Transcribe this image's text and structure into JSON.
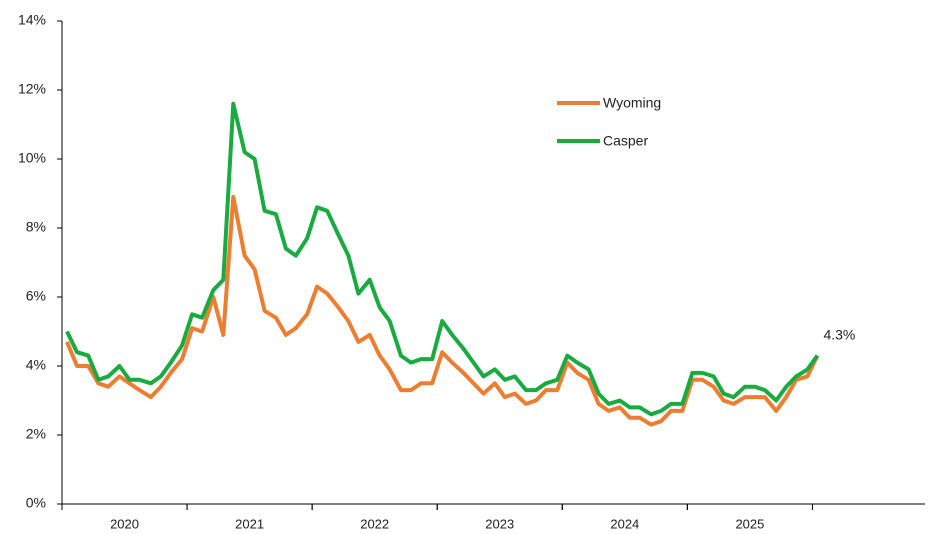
{
  "chart_data": {
    "type": "line",
    "x": [
      2020.04,
      2020.12,
      2020.21,
      2020.29,
      2020.37,
      2020.46,
      2020.54,
      2020.62,
      2020.71,
      2020.79,
      2020.87,
      2020.96,
      2021.04,
      2021.12,
      2021.21,
      2021.29,
      2021.37,
      2021.46,
      2021.54,
      2021.62,
      2021.71,
      2021.79,
      2021.87,
      2021.96,
      2022.04,
      2022.12,
      2022.21,
      2022.29,
      2022.37,
      2022.46,
      2022.54,
      2022.62,
      2022.71,
      2022.79,
      2022.87,
      2022.96,
      2023.04,
      2023.12,
      2023.21,
      2023.29,
      2023.37,
      2023.46,
      2023.54,
      2023.62,
      2023.71,
      2023.79,
      2023.87,
      2023.96,
      2024.04,
      2024.12,
      2024.21,
      2024.29,
      2024.37,
      2024.46,
      2024.54,
      2024.62,
      2024.71,
      2024.79,
      2024.87,
      2024.96,
      2025.04,
      2025.12,
      2025.21,
      2025.29,
      2025.37,
      2025.46,
      2025.54,
      2025.62,
      2025.71,
      2025.79,
      2025.87,
      2025.96,
      2026.04
    ],
    "series": [
      {
        "name": "Wyoming",
        "color": "#ED7D31",
        "values": [
          4.7,
          4.0,
          4.0,
          3.5,
          3.4,
          3.7,
          3.5,
          3.3,
          3.1,
          3.4,
          3.8,
          4.2,
          5.1,
          5.0,
          6.0,
          4.9,
          8.9,
          7.2,
          6.8,
          5.6,
          5.4,
          4.9,
          5.1,
          5.5,
          6.3,
          6.1,
          5.7,
          5.3,
          4.7,
          4.9,
          4.3,
          3.9,
          3.3,
          3.3,
          3.5,
          3.5,
          4.4,
          4.1,
          3.8,
          3.5,
          3.2,
          3.5,
          3.1,
          3.2,
          2.9,
          3.0,
          3.3,
          3.3,
          4.1,
          3.8,
          3.6,
          2.9,
          2.7,
          2.8,
          2.5,
          2.5,
          2.3,
          2.4,
          2.7,
          2.7,
          3.6,
          3.6,
          3.4,
          3.0,
          2.9,
          3.1,
          3.1,
          3.1,
          2.7,
          3.1,
          3.6,
          3.7,
          4.3
        ]
      },
      {
        "name": "Casper",
        "color": "#1AAB40",
        "values": [
          5.0,
          4.4,
          4.3,
          3.6,
          3.7,
          4.0,
          3.6,
          3.6,
          3.5,
          3.7,
          4.1,
          4.6,
          5.5,
          5.4,
          6.2,
          6.5,
          11.6,
          10.2,
          10.0,
          8.5,
          8.4,
          7.4,
          7.2,
          7.7,
          8.6,
          8.5,
          7.8,
          7.2,
          6.1,
          6.5,
          5.7,
          5.3,
          4.3,
          4.1,
          4.2,
          4.2,
          5.3,
          4.9,
          4.5,
          4.1,
          3.7,
          3.9,
          3.6,
          3.7,
          3.3,
          3.3,
          3.5,
          3.6,
          4.3,
          4.1,
          3.9,
          3.2,
          2.9,
          3.0,
          2.8,
          2.8,
          2.6,
          2.7,
          2.9,
          2.9,
          3.8,
          3.8,
          3.7,
          3.2,
          3.1,
          3.4,
          3.4,
          3.3,
          3.0,
          3.4,
          3.7,
          3.9,
          4.3
        ],
        "value_labels": [
          null,
          null,
          null,
          null,
          null,
          null,
          null,
          null,
          null,
          null,
          null,
          null,
          null,
          null,
          null,
          null,
          null,
          null,
          null,
          null,
          null,
          null,
          null,
          null,
          null,
          null,
          null,
          null,
          null,
          null,
          null,
          null,
          null,
          null,
          null,
          null,
          null,
          null,
          null,
          null,
          null,
          null,
          null,
          null,
          null,
          null,
          null,
          null,
          null,
          null,
          null,
          null,
          null,
          null,
          null,
          null,
          null,
          null,
          null,
          null,
          null,
          null,
          null,
          null,
          null,
          null,
          null,
          null,
          null,
          null,
          null,
          null,
          "4.3%"
        ]
      }
    ],
    "ylim": [
      0,
      14
    ],
    "yticks": [
      {
        "value": 0,
        "label": "0%"
      },
      {
        "value": 2,
        "label": "2%"
      },
      {
        "value": 4,
        "label": "4%"
      },
      {
        "value": 6,
        "label": "6%"
      },
      {
        "value": 8,
        "label": "8%"
      },
      {
        "value": 10,
        "label": "10%"
      },
      {
        "value": 12,
        "label": "12%"
      },
      {
        "value": 14,
        "label": "14%"
      }
    ],
    "xlim": [
      2020,
      2026.9
    ],
    "xticks": [
      {
        "value": 2020.5,
        "label": "2020"
      },
      {
        "value": 2021.5,
        "label": "2021"
      },
      {
        "value": 2022.5,
        "label": "2022"
      },
      {
        "value": 2023.5,
        "label": "2023"
      },
      {
        "value": 2024.5,
        "label": "2024"
      },
      {
        "value": 2025.5,
        "label": "2025"
      }
    ],
    "grid": false
  }
}
